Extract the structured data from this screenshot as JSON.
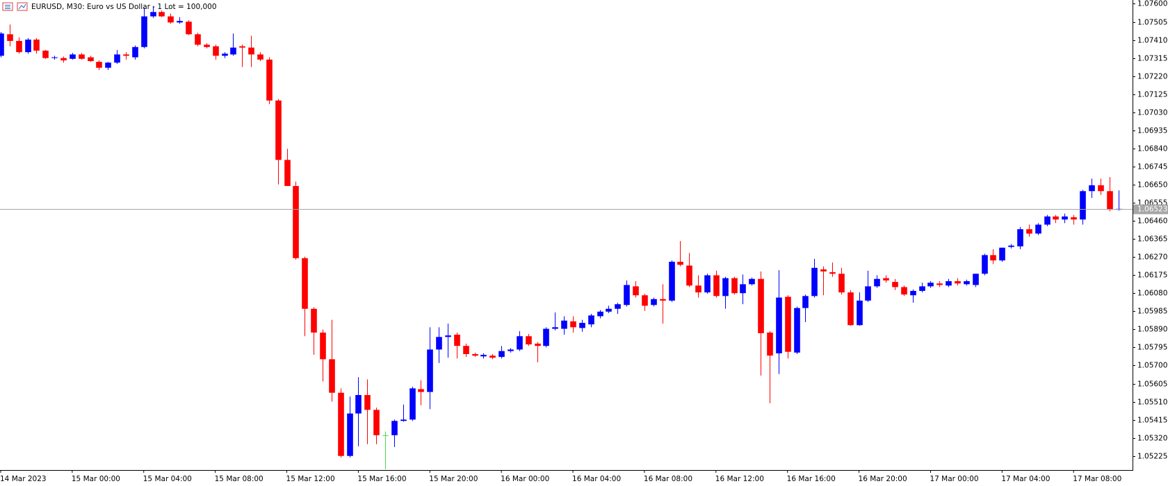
{
  "chart_data": {
    "type": "candlestick",
    "title": "EURUSD, M30:  Euro vs US Dollar - 1 Lot = 100,000",
    "categories": [
      "14 Mar 2023",
      null,
      null,
      null,
      null,
      null,
      null,
      null,
      "15 Mar 00:00",
      null,
      null,
      null,
      null,
      null,
      null,
      null,
      "15 Mar 04:00",
      null,
      null,
      null,
      null,
      null,
      null,
      null,
      "15 Mar 08:00",
      null,
      null,
      null,
      null,
      null,
      null,
      null,
      "15 Mar 12:00",
      null,
      null,
      null,
      null,
      null,
      null,
      null,
      "15 Mar 16:00",
      null,
      null,
      null,
      null,
      null,
      null,
      null,
      "15 Mar 20:00",
      null,
      null,
      null,
      null,
      null,
      null,
      null,
      "16 Mar 00:00",
      null,
      null,
      null,
      null,
      null,
      null,
      null,
      "16 Mar 04:00",
      null,
      null,
      null,
      null,
      null,
      null,
      null,
      "16 Mar 08:00",
      null,
      null,
      null,
      null,
      null,
      null,
      null,
      "16 Mar 12:00",
      null,
      null,
      null,
      null,
      null,
      null,
      null,
      "16 Mar 16:00",
      null,
      null,
      null,
      null,
      null,
      null,
      null,
      "16 Mar 20:00",
      null,
      null,
      null,
      null,
      null,
      null,
      null,
      "17 Mar 00:00",
      null,
      null,
      null,
      null,
      null,
      null,
      null,
      "17 Mar 04:00",
      null,
      null,
      null,
      null,
      null,
      null,
      null,
      "17 Mar 08:00",
      null,
      null,
      null,
      null,
      null
    ],
    "open": [
      1.07327,
      1.0744,
      1.07405,
      1.07346,
      1.07412,
      1.07354,
      1.07315,
      1.07315,
      1.07311,
      1.07334,
      1.07319,
      1.07295,
      1.07264,
      1.07291,
      1.07334,
      1.07319,
      1.07373,
      1.07534,
      1.07557,
      1.07534,
      1.07502,
      1.07506,
      1.0744,
      1.07385,
      1.07377,
      1.07327,
      1.07334,
      1.07377,
      1.0737,
      1.07334,
      1.07307,
      1.07092,
      1.0678,
      1.06643,
      1.06264,
      1.05998,
      1.05873,
      1.05733,
      1.05557,
      1.05225,
      1.05448,
      1.05545,
      1.05467,
      1.05334,
      1.05334,
      1.05409,
      1.05416,
      1.05576,
      1.05561,
      1.05784,
      1.0585,
      1.05862,
      1.05803,
      1.0576,
      1.05748,
      1.05752,
      1.05745,
      1.05776,
      1.05784,
      1.05854,
      1.05815,
      1.05803,
      1.05893,
      1.05893,
      1.05932,
      1.05897,
      1.05916,
      1.05959,
      1.05983,
      1.05998,
      1.06018,
      1.06116,
      1.06069,
      1.06018,
      1.06049,
      1.06041,
      1.06245,
      1.06225,
      1.0612,
      1.06084,
      1.06174,
      1.06065,
      1.06159,
      1.0608,
      1.06127,
      1.06155,
      1.05873,
      1.05764,
      1.06061,
      1.05768,
      1.06002,
      1.06065,
      1.06205,
      1.0619,
      1.06182,
      1.06084,
      1.05912,
      1.06041,
      1.06116,
      1.06159,
      1.06139,
      1.06112,
      1.06069,
      1.06092,
      1.06116,
      1.06131,
      1.0612,
      1.06143,
      1.06127,
      1.06123,
      1.06182,
      1.0628,
      1.06252,
      1.06323,
      1.06326,
      1.06416,
      1.06393,
      1.0644,
      1.06483,
      1.06467,
      1.06479,
      1.06467,
      1.06616,
      1.06647,
      1.06616,
      1.06518
    ],
    "high": [
      1.07452,
      1.07491,
      1.07424,
      1.0742,
      1.0742,
      1.07358,
      1.07327,
      1.07323,
      1.07342,
      1.07342,
      1.07327,
      1.07303,
      1.07295,
      1.07358,
      1.07346,
      1.07381,
      1.0758,
      1.07588,
      1.07565,
      1.07549,
      1.0753,
      1.07514,
      1.07448,
      1.07393,
      1.07385,
      1.07346,
      1.07444,
      1.07385,
      1.07432,
      1.07346,
      1.07319,
      1.071,
      1.06838,
      1.06666,
      1.06272,
      1.06006,
      1.05889,
      1.0594,
      1.0558,
      1.05537,
      1.05639,
      1.05627,
      1.05479,
      1.05354,
      1.05416,
      1.05495,
      1.05588,
      1.05623,
      1.05901,
      1.05901,
      1.0592,
      1.05873,
      1.05815,
      1.05768,
      1.05764,
      1.0576,
      1.05803,
      1.05791,
      1.05881,
      1.05866,
      1.05823,
      1.05901,
      1.05979,
      1.05959,
      1.05959,
      1.0594,
      1.05971,
      1.05991,
      1.06014,
      1.0603,
      1.06147,
      1.06143,
      1.06077,
      1.06057,
      1.06127,
      1.06252,
      1.06354,
      1.06291,
      1.06174,
      1.06182,
      1.06198,
      1.06166,
      1.06166,
      1.06178,
      1.06162,
      1.06194,
      1.05881,
      1.06201,
      1.06069,
      1.0601,
      1.06073,
      1.0626,
      1.06221,
      1.06241,
      1.06213,
      1.06096,
      1.06084,
      1.06198,
      1.06174,
      1.06174,
      1.06155,
      1.0612,
      1.061,
      1.06135,
      1.06143,
      1.06143,
      1.06155,
      1.06159,
      1.06151,
      1.06182,
      1.06287,
      1.06311,
      1.06319,
      1.06338,
      1.06428,
      1.0644,
      1.06448,
      1.06491,
      1.06491,
      1.06498,
      1.06491,
      1.06623,
      1.06682,
      1.06682,
      1.0669,
      1.0662
    ],
    "low": [
      1.07319,
      1.07377,
      1.07338,
      1.07338,
      1.07338,
      1.07311,
      1.07307,
      1.07291,
      1.07307,
      1.07307,
      1.07295,
      1.07252,
      1.07252,
      1.07284,
      1.07307,
      1.07307,
      1.07366,
      1.07526,
      1.0753,
      1.07495,
      1.07495,
      1.07436,
      1.07377,
      1.07366,
      1.07307,
      1.07315,
      1.07327,
      1.07268,
      1.07268,
      1.07299,
      1.07073,
      1.06651,
      1.06643,
      1.06256,
      1.05854,
      1.05756,
      1.05616,
      1.0551,
      1.05217,
      1.05217,
      1.05276,
      1.05287,
      1.05287,
      1.05155,
      1.05272,
      1.05405,
      1.05409,
      1.05491,
      1.05471,
      1.05713,
      1.05741,
      1.05737,
      1.05745,
      1.05745,
      1.05737,
      1.05733,
      1.05737,
      1.05768,
      1.05776,
      1.05803,
      1.05717,
      1.05795,
      1.05885,
      1.05862,
      1.05873,
      1.05877,
      1.05901,
      1.05948,
      1.05975,
      1.05971,
      1.0601,
      1.06057,
      1.05987,
      1.0601,
      1.0592,
      1.06034,
      1.06221,
      1.06112,
      1.06057,
      1.06077,
      1.06057,
      1.05998,
      1.06073,
      1.06022,
      1.0612,
      1.05647,
      1.05502,
      1.05655,
      1.05737,
      1.0576,
      1.05928,
      1.06057,
      1.06069,
      1.06166,
      1.06073,
      1.05909,
      1.05909,
      1.06034,
      1.06108,
      1.06135,
      1.06096,
      1.06065,
      1.0603,
      1.06084,
      1.06108,
      1.06112,
      1.06112,
      1.0612,
      1.0612,
      1.06112,
      1.06174,
      1.06233,
      1.06245,
      1.06315,
      1.06311,
      1.06377,
      1.06385,
      1.06432,
      1.06448,
      1.06448,
      1.0644,
      1.0644,
      1.0658,
      1.06596,
      1.0651,
      1.06514
    ],
    "close": [
      1.07444,
      1.07405,
      1.07346,
      1.07412,
      1.07354,
      1.07315,
      1.07319,
      1.07303,
      1.07334,
      1.07311,
      1.07299,
      1.07264,
      1.07291,
      1.07334,
      1.07327,
      1.07373,
      1.07534,
      1.07557,
      1.07534,
      1.07502,
      1.0751,
      1.0744,
      1.07385,
      1.07373,
      1.07327,
      1.07338,
      1.0737,
      1.0737,
      1.07334,
      1.07307,
      1.07092,
      1.0678,
      1.06643,
      1.06264,
      1.05998,
      1.05873,
      1.05733,
      1.05557,
      1.05225,
      1.05448,
      1.05545,
      1.05467,
      1.05334,
      1.05334,
      1.05409,
      1.05416,
      1.0558,
      1.05561,
      1.05784,
      1.0585,
      1.05858,
      1.05803,
      1.0576,
      1.05752,
      1.05756,
      1.05741,
      1.05776,
      1.05784,
      1.05854,
      1.05811,
      1.05803,
      1.05893,
      1.05901,
      1.05936,
      1.05901,
      1.05924,
      1.05963,
      1.05983,
      1.05998,
      1.06022,
      1.06123,
      1.06069,
      1.06014,
      1.06049,
      1.06041,
      1.06245,
      1.06229,
      1.0612,
      1.06084,
      1.06174,
      1.06065,
      1.06159,
      1.0608,
      1.06127,
      1.06155,
      1.0587,
      1.05752,
      1.06057,
      1.05772,
      1.06002,
      1.06065,
      1.06213,
      1.06194,
      1.06182,
      1.06084,
      1.05912,
      1.06041,
      1.06116,
      1.06155,
      1.06147,
      1.06112,
      1.06073,
      1.06092,
      1.06116,
      1.06135,
      1.06123,
      1.06143,
      1.06131,
      1.06143,
      1.06182,
      1.0628,
      1.06252,
      1.06319,
      1.0633,
      1.06416,
      1.06393,
      1.0644,
      1.06483,
      1.06467,
      1.06483,
      1.06467,
      1.06616,
      1.06647,
      1.06616,
      1.06518,
      1.06523
    ],
    "ylim": [
      1.05151,
      1.0762
    ],
    "yticks": [
      {
        "value": 1.076,
        "label": "1.07600"
      },
      1.07505,
      {
        "value": 1.0741,
        "label": "1.07410"
      },
      1.07315,
      {
        "value": 1.0722,
        "label": "1.07220"
      },
      1.07125,
      {
        "value": 1.0703,
        "label": "1.07030"
      },
      1.06935,
      {
        "value": 1.0684,
        "label": "1.06840"
      },
      1.06745,
      {
        "value": 1.0665,
        "label": "1.06650"
      },
      1.06555,
      {
        "value": 1.0646,
        "label": "1.06460"
      },
      1.06365,
      {
        "value": 1.0627,
        "label": "1.06270"
      },
      1.06175,
      {
        "value": 1.0608,
        "label": "1.06080"
      },
      1.05985,
      {
        "value": 1.0589,
        "label": "1.05890"
      },
      1.05795,
      {
        "value": 1.057,
        "label": "1.05700"
      },
      1.05605,
      {
        "value": 1.0551,
        "label": "1.05510"
      },
      1.05415,
      {
        "value": 1.0532,
        "label": "1.05320"
      },
      1.05225
    ],
    "current_price": 1.06523,
    "colors": {
      "up": "#0000ff",
      "down": "#ff0000",
      "doji": "#4cd84c",
      "price_line": "#a6a6a6"
    },
    "grid": false
  }
}
